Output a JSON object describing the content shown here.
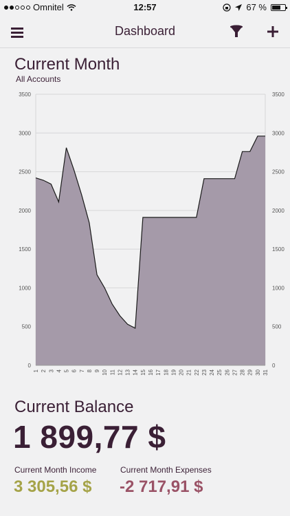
{
  "status_bar": {
    "carrier": "Omnitel",
    "time": "12:57",
    "battery": "67 %"
  },
  "header": {
    "title": "Dashboard",
    "menu_icon": "hamburger-menu-icon",
    "filter_icon": "funnel-filter-icon",
    "add_icon": "plus-icon"
  },
  "current_month": {
    "title": "Current Month",
    "subtitle": "All Accounts"
  },
  "chart_data": {
    "type": "area",
    "x": [
      "1",
      "2",
      "3",
      "4",
      "5",
      "6",
      "7",
      "8",
      "9",
      "10",
      "11",
      "12",
      "13",
      "14",
      "15",
      "16",
      "17",
      "18",
      "19",
      "20",
      "21",
      "22",
      "23",
      "24",
      "25",
      "26",
      "27",
      "28",
      "29",
      "30",
      "31"
    ],
    "series": [
      {
        "values": [
          2420,
          2390,
          2340,
          2110,
          2810,
          2520,
          2200,
          1840,
          1170,
          1000,
          790,
          640,
          530,
          480,
          1910,
          1910,
          1910,
          1910,
          1910,
          1910,
          1910,
          1910,
          2410,
          2410,
          2410,
          2410,
          2410,
          2760,
          2760,
          2960,
          2960
        ]
      }
    ],
    "ylim": [
      0,
      3500
    ],
    "yticks": [
      "0",
      "500",
      "1000",
      "1500",
      "2000",
      "2500",
      "3000",
      "3500"
    ],
    "grid": true,
    "fill_color": "#a59aa9",
    "line_color": "#1a1a1a"
  },
  "balance": {
    "title": "Current Balance",
    "value": "1 899,77 $",
    "income_label": "Current Month Income",
    "income_value": "3 305,56 $",
    "expenses_label": "Current Month Expenses",
    "expenses_value": "-2 717,91 $"
  },
  "colors": {
    "primary": "#3a1f35",
    "income": "#a5a348",
    "expenses": "#9a5266"
  }
}
